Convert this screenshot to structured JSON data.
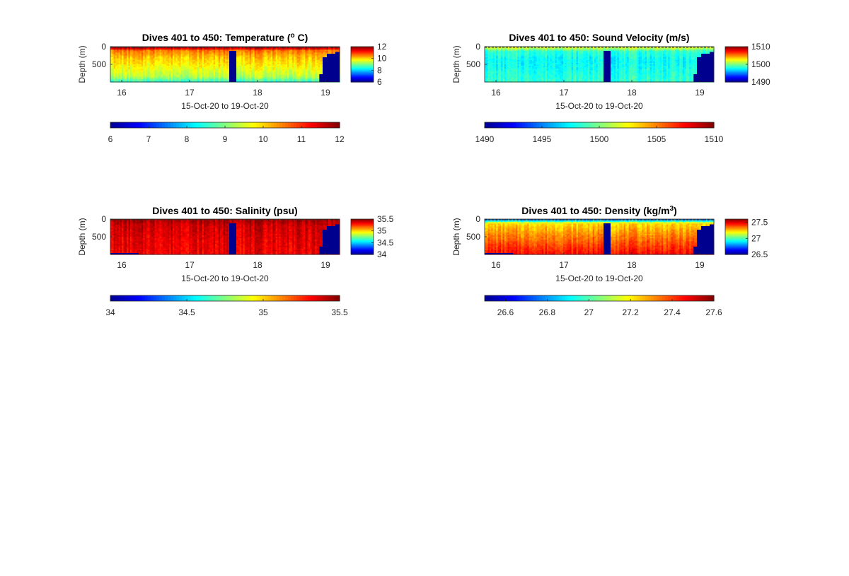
{
  "colors": {
    "jet_colormap": [
      "#00008f",
      "#0000ff",
      "#0080ff",
      "#00ffff",
      "#80ff80",
      "#ffff00",
      "#ff8000",
      "#ff0000",
      "#800000"
    ],
    "no_data": "#00008f",
    "axis": "#262626",
    "background": "#ffffff"
  },
  "chart_data": [
    {
      "type": "heatmap",
      "title_main": "Dives 401 to 450: Temperature (",
      "title_sup": "o",
      "title_end": " C)",
      "variable": "temperature",
      "xlabel": "15-Oct-20 to 19-Oct-20",
      "ylabel": "Depth (m)",
      "x_range": [
        "2020-10-15T20:00",
        "2020-10-19T05:00"
      ],
      "xticks": [
        16,
        17,
        18,
        19
      ],
      "ylim": [
        0,
        1000
      ],
      "y_reversed": true,
      "yticks": [
        0,
        500
      ],
      "clim": [
        6,
        12
      ],
      "right_colorbar_ticks": [
        "12",
        "10",
        "8",
        "6"
      ],
      "bottom_colorbar_ticks": [
        "6",
        "7",
        "8",
        "9",
        "10",
        "11",
        "12"
      ],
      "depth_profile": [
        {
          "depth": 0,
          "value": 11.8
        },
        {
          "depth": 60,
          "value": 11.5
        },
        {
          "depth": 100,
          "value": 10.6
        },
        {
          "depth": 300,
          "value": 10.1
        },
        {
          "depth": 600,
          "value": 9.7
        },
        {
          "depth": 850,
          "value": 9.3
        },
        {
          "depth": 1000,
          "value": 8.5
        }
      ],
      "missing_data": [
        {
          "from": "2020-10-17T14:00",
          "to": "2020-10-17T16:30",
          "min_depth": 120
        },
        {
          "from": "2020-10-18T21:50",
          "to": "2020-10-18T23:00",
          "min_depth": 780
        },
        {
          "from": "2020-10-18T23:00",
          "to": "2020-10-19T00:30",
          "min_depth": 300
        },
        {
          "from": "2020-10-19T00:30",
          "to": "2020-10-19T03:30",
          "min_depth": 200
        },
        {
          "from": "2020-10-19T03:30",
          "to": "2020-10-19T05:00",
          "min_depth": 150
        }
      ]
    },
    {
      "type": "heatmap",
      "title_main": "Dives 401 to 450: Sound Velocity (m/s)",
      "title_sup": "",
      "title_end": "",
      "variable": "sound velocity",
      "xlabel": "15-Oct-20 to 19-Oct-20",
      "ylabel": "Depth (m)",
      "x_range": [
        "2020-10-15T20:00",
        "2020-10-19T05:00"
      ],
      "xticks": [
        16,
        17,
        18,
        19
      ],
      "ylim": [
        0,
        1000
      ],
      "y_reversed": true,
      "yticks": [
        0,
        500
      ],
      "clim": [
        1490,
        1510
      ],
      "right_colorbar_ticks": [
        "1510",
        "1500",
        "1490"
      ],
      "bottom_colorbar_ticks": [
        "1490",
        "1495",
        "1500",
        "1505",
        "1510"
      ],
      "depth_profile": [
        {
          "depth": 0,
          "value": 1502
        },
        {
          "depth": 60,
          "value": 1501
        },
        {
          "depth": 120,
          "value": 1498.5
        },
        {
          "depth": 400,
          "value": 1497.5
        },
        {
          "depth": 700,
          "value": 1498
        },
        {
          "depth": 1000,
          "value": 1498.5
        }
      ],
      "missing_data": [
        {
          "from": "2020-10-17T14:00",
          "to": "2020-10-17T16:30",
          "min_depth": 120
        },
        {
          "from": "2020-10-18T21:50",
          "to": "2020-10-18T23:00",
          "min_depth": 780
        },
        {
          "from": "2020-10-18T23:00",
          "to": "2020-10-19T00:30",
          "min_depth": 300
        },
        {
          "from": "2020-10-19T00:30",
          "to": "2020-10-19T03:30",
          "min_depth": 200
        },
        {
          "from": "2020-10-19T03:30",
          "to": "2020-10-19T05:00",
          "min_depth": 150
        }
      ]
    },
    {
      "type": "heatmap",
      "title_main": "Dives 401 to 450: Salinity (psu)",
      "title_sup": "",
      "title_end": "",
      "variable": "salinity",
      "xlabel": "15-Oct-20 to 19-Oct-20",
      "ylabel": "Depth (m)",
      "x_range": [
        "2020-10-15T20:00",
        "2020-10-19T05:00"
      ],
      "xticks": [
        16,
        17,
        18,
        19
      ],
      "ylim": [
        0,
        1000
      ],
      "y_reversed": true,
      "yticks": [
        0,
        500
      ],
      "clim": [
        34,
        35.5
      ],
      "right_colorbar_ticks": [
        "35.5",
        "35",
        "34.5",
        "34"
      ],
      "bottom_colorbar_ticks": [
        "34",
        "34.5",
        "35",
        "35.5"
      ],
      "depth_profile": [
        {
          "depth": 0,
          "value": 35.45
        },
        {
          "depth": 200,
          "value": 35.38
        },
        {
          "depth": 600,
          "value": 35.35
        },
        {
          "depth": 1000,
          "value": 35.33
        }
      ],
      "missing_data": [
        {
          "from": "2020-10-15T20:00",
          "to": "2020-10-16T06:00",
          "min_depth": 960
        },
        {
          "from": "2020-10-17T14:00",
          "to": "2020-10-17T16:30",
          "min_depth": 120
        },
        {
          "from": "2020-10-18T21:50",
          "to": "2020-10-18T23:00",
          "min_depth": 780
        },
        {
          "from": "2020-10-18T23:00",
          "to": "2020-10-19T00:30",
          "min_depth": 300
        },
        {
          "from": "2020-10-19T00:30",
          "to": "2020-10-19T03:30",
          "min_depth": 200
        },
        {
          "from": "2020-10-19T03:30",
          "to": "2020-10-19T05:00",
          "min_depth": 150
        }
      ]
    },
    {
      "type": "heatmap",
      "title_main": "Dives 401 to 450: Density (kg/m",
      "title_sup": "3",
      "title_end": ")",
      "variable": "density",
      "xlabel": "15-Oct-20 to 19-Oct-20",
      "ylabel": "Depth (m)",
      "x_range": [
        "2020-10-15T20:00",
        "2020-10-19T05:00"
      ],
      "xticks": [
        16,
        17,
        18,
        19
      ],
      "ylim": [
        0,
        1000
      ],
      "y_reversed": true,
      "yticks": [
        0,
        500
      ],
      "clim": [
        26.5,
        27.6
      ],
      "right_colorbar_ticks": [
        "27.5",
        "27",
        "26.5"
      ],
      "bottom_colorbar_ticks": [
        "26.6",
        "26.8",
        "27",
        "27.2",
        "27.4",
        "27.6"
      ],
      "depth_profile": [
        {
          "depth": 0,
          "value": 26.7
        },
        {
          "depth": 60,
          "value": 26.95
        },
        {
          "depth": 120,
          "value": 27.22
        },
        {
          "depth": 400,
          "value": 27.3
        },
        {
          "depth": 700,
          "value": 27.38
        },
        {
          "depth": 1000,
          "value": 27.46
        }
      ],
      "missing_data": [
        {
          "from": "2020-10-15T20:00",
          "to": "2020-10-16T06:00",
          "min_depth": 960
        },
        {
          "from": "2020-10-17T14:00",
          "to": "2020-10-17T16:30",
          "min_depth": 120
        },
        {
          "from": "2020-10-18T21:50",
          "to": "2020-10-18T23:00",
          "min_depth": 780
        },
        {
          "from": "2020-10-18T23:00",
          "to": "2020-10-19T00:30",
          "min_depth": 300
        },
        {
          "from": "2020-10-19T00:30",
          "to": "2020-10-19T03:30",
          "min_depth": 200
        },
        {
          "from": "2020-10-19T03:30",
          "to": "2020-10-19T05:00",
          "min_depth": 150
        }
      ]
    }
  ]
}
